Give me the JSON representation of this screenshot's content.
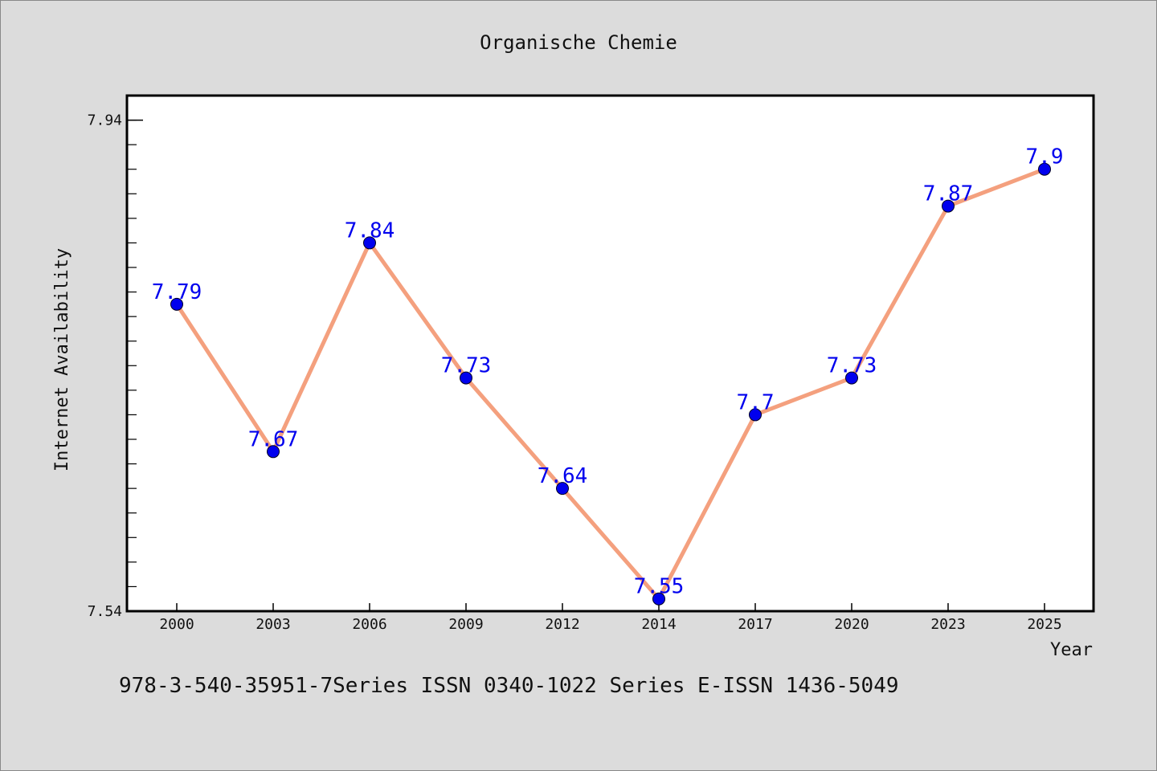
{
  "chart_data": {
    "type": "line",
    "title": "Organische Chemie",
    "xlabel": "Year",
    "ylabel": "Internet Availability",
    "categories": [
      "2000",
      "2003",
      "2006",
      "2009",
      "2012",
      "2014",
      "2017",
      "2020",
      "2023",
      "2025"
    ],
    "series": [
      {
        "values": [
          7.79,
          7.67,
          7.84,
          7.73,
          7.64,
          7.55,
          7.7,
          7.73,
          7.87,
          7.9
        ],
        "labels": [
          "7.79",
          "7.67",
          "7.84",
          "7.73",
          "7.64",
          "7.55",
          "7.7",
          "7.73",
          "7.87",
          "7.9"
        ],
        "line_color": "#f4a07e",
        "marker_color": "#0000ee",
        "label_color": "#0000ee"
      }
    ],
    "ylim": [
      7.54,
      7.96
    ],
    "yticks": [
      "7.94",
      "7.54"
    ],
    "ytick_values": [
      7.94,
      7.54
    ],
    "grid": false,
    "legend": "none"
  },
  "footer_text": "978-3-540-35951-7Series ISSN 0340-1022 Series E-ISSN 1436-5049",
  "colors": {
    "background": "#dcdcdc",
    "plot_background": "#ffffff"
  }
}
